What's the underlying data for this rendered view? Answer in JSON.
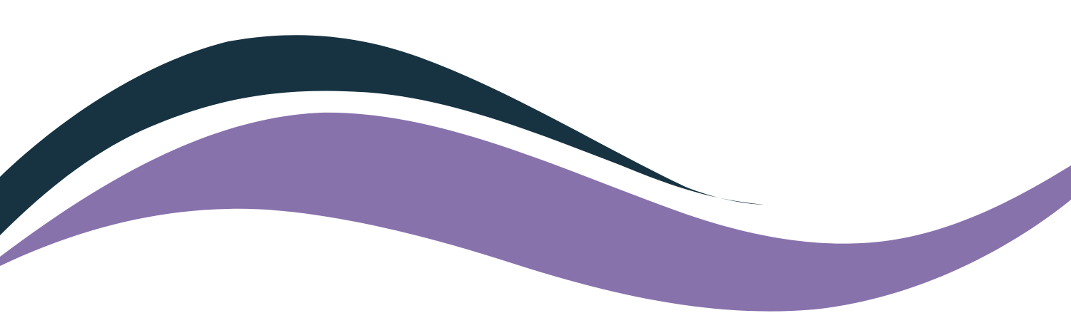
{
  "graphic": {
    "background_color": "#ffffff",
    "waves": [
      {
        "name": "dark-wave",
        "color": "#173342"
      },
      {
        "name": "purple-wave",
        "color": "#8872ac"
      }
    ]
  }
}
